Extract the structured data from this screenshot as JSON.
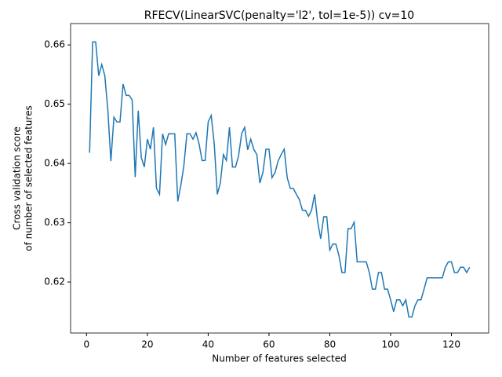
{
  "chart_data": {
    "type": "line",
    "title": "RFECV(LinearSVC(penalty='l2', tol=1e-5)) cv=10",
    "x_label": "Number of features selected",
    "y_label": [
      "Cross validation score",
      "of number of selected features"
    ],
    "x": [
      1,
      2,
      3,
      4,
      5,
      6,
      7,
      8,
      9,
      10,
      11,
      12,
      13,
      14,
      15,
      16,
      17,
      18,
      19,
      20,
      21,
      22,
      23,
      24,
      25,
      26,
      27,
      28,
      29,
      30,
      31,
      32,
      33,
      34,
      35,
      36,
      37,
      38,
      39,
      40,
      41,
      42,
      43,
      44,
      45,
      46,
      47,
      48,
      49,
      50,
      51,
      52,
      53,
      54,
      55,
      56,
      57,
      58,
      59,
      60,
      61,
      62,
      63,
      64,
      65,
      66,
      67,
      68,
      69,
      70,
      71,
      72,
      73,
      74,
      75,
      76,
      77,
      78,
      79,
      80,
      81,
      82,
      83,
      84,
      85,
      86,
      87,
      88,
      89,
      90,
      91,
      92,
      93,
      94,
      95,
      96,
      97,
      98,
      99,
      100,
      101,
      102,
      103,
      104,
      105,
      106,
      107,
      108,
      109,
      110,
      111,
      112,
      113,
      114,
      115,
      116,
      117,
      118,
      119,
      120,
      121,
      122,
      123,
      124,
      125,
      126
    ],
    "series": [
      {
        "name": "score",
        "color": "#1f77b4",
        "values": [
          0.6418,
          0.6605,
          0.6605,
          0.6548,
          0.6567,
          0.6548,
          0.649,
          0.6404,
          0.6478,
          0.647,
          0.647,
          0.6534,
          0.6515,
          0.6515,
          0.6507,
          0.6377,
          0.6489,
          0.641,
          0.6394,
          0.6441,
          0.6424,
          0.6461,
          0.6358,
          0.6348,
          0.645,
          0.6432,
          0.645,
          0.645,
          0.645,
          0.6336,
          0.6363,
          0.6396,
          0.645,
          0.645,
          0.6441,
          0.6452,
          0.6433,
          0.6405,
          0.6405,
          0.647,
          0.6481,
          0.6433,
          0.6348,
          0.6367,
          0.6415,
          0.6405,
          0.6461,
          0.6394,
          0.6394,
          0.6413,
          0.645,
          0.6461,
          0.6423,
          0.6441,
          0.6424,
          0.6415,
          0.6367,
          0.6385,
          0.6424,
          0.6424,
          0.6376,
          0.6385,
          0.6404,
          0.6415,
          0.6424,
          0.6376,
          0.6358,
          0.6358,
          0.6348,
          0.6339,
          0.6321,
          0.6321,
          0.6311,
          0.6321,
          0.6348,
          0.6302,
          0.6273,
          0.631,
          0.631,
          0.6254,
          0.6264,
          0.6264,
          0.6245,
          0.6216,
          0.6216,
          0.629,
          0.629,
          0.6301,
          0.6234,
          0.6234,
          0.6234,
          0.6234,
          0.6216,
          0.6188,
          0.6188,
          0.6216,
          0.6216,
          0.6188,
          0.6188,
          0.617,
          0.615,
          0.617,
          0.617,
          0.616,
          0.617,
          0.6141,
          0.6141,
          0.616,
          0.617,
          0.617,
          0.6188,
          0.6207,
          0.6207,
          0.6207,
          0.6207,
          0.6207,
          0.6207,
          0.6225,
          0.6234,
          0.6234,
          0.6216,
          0.6216,
          0.6225,
          0.6225,
          0.6216,
          0.6225
        ]
      }
    ],
    "xlim": [
      -5.25,
      132.25
    ],
    "ylim": [
      0.6114,
      0.6636
    ],
    "xticks": [
      0,
      20,
      40,
      60,
      80,
      100,
      120
    ],
    "yticks": [
      0.62,
      0.63,
      0.64,
      0.65,
      0.66
    ],
    "grid": false
  }
}
